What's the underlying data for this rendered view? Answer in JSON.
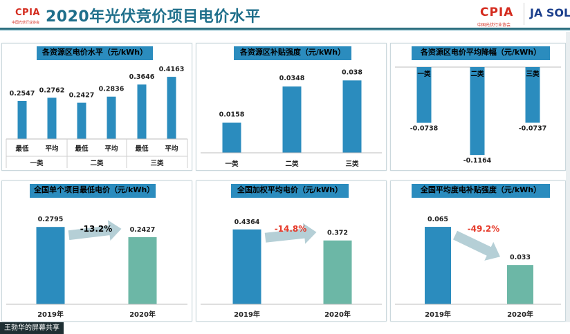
{
  "header": {
    "title": "2020年光伏竞价项目电价水平",
    "left_logo": "CPIA",
    "left_logo_sub": "中国光伏行业协会",
    "right_logo": "CPIA",
    "right_logo_sub": "中国光伏行业协会",
    "partner_logo": "JA SOLA",
    "partner_logo_sub": ""
  },
  "watermark": "王勃华的屏幕共享",
  "colors": {
    "bar_blue": "#2b8cbe",
    "bar_teal": "#6cb7a6",
    "pct_red": "#e63a2a",
    "pct_dark": "#000000",
    "header_blue": "#1f6f8b"
  },
  "chart_data": [
    {
      "id": "c1",
      "type": "bar",
      "title": "各资源区电价水平（元/kWh）",
      "categories": [
        "最低",
        "平均",
        "最低",
        "平均",
        "最低",
        "平均"
      ],
      "groups": [
        "一类",
        "二类",
        "三类"
      ],
      "values": [
        0.2547,
        0.2762,
        0.2427,
        0.2836,
        0.3646,
        0.4163
      ],
      "labels": [
        "0.2547",
        "0.2762",
        "0.2427",
        "0.2836",
        "0.3646",
        "0.4163"
      ],
      "ylim": [
        0,
        0.5
      ],
      "grid": false
    },
    {
      "id": "c2",
      "type": "bar",
      "title": "各资源区补贴强度（元/kWh）",
      "categories": [
        "一类",
        "二类",
        "三类"
      ],
      "values": [
        0.0158,
        0.0348,
        0.038
      ],
      "labels": [
        "0.0158",
        "0.0348",
        "0.038"
      ],
      "ylim": [
        0,
        0.045
      ],
      "grid": false
    },
    {
      "id": "c3",
      "type": "bar",
      "title": "各资源区电价平均降幅（元/kWh）",
      "categories": [
        "一类",
        "二类",
        "三类"
      ],
      "values": [
        -0.0738,
        -0.1164,
        -0.0737
      ],
      "labels": [
        "-0.0738",
        "-0.1164",
        "-0.0737"
      ],
      "ylim": [
        -0.13,
        0
      ],
      "grid": false
    },
    {
      "id": "c4",
      "type": "bar",
      "title": "全国单个项目最低电价（元/kWh）",
      "categories": [
        "2019年",
        "2020年"
      ],
      "values": [
        0.2795,
        0.2427
      ],
      "labels": [
        "0.2795",
        "0.2427"
      ],
      "change": "-13.2%",
      "change_color": "#000000",
      "ylim": [
        0,
        0.31
      ],
      "grid": false
    },
    {
      "id": "c5",
      "type": "bar",
      "title": "全国加权平均电价（元/kWh）",
      "categories": [
        "2019年",
        "2020年"
      ],
      "values": [
        0.4364,
        0.372
      ],
      "labels": [
        "0.4364",
        "0.372"
      ],
      "change": "-14.8%",
      "change_color": "#e63a2a",
      "ylim": [
        0,
        0.5
      ],
      "grid": false
    },
    {
      "id": "c6",
      "type": "bar",
      "title": "全国平均度电补贴强度（元/kWh）",
      "categories": [
        "2019年",
        "2020年"
      ],
      "values": [
        0.065,
        0.033
      ],
      "labels": [
        "0.065",
        "0.033"
      ],
      "change": "-49.2%",
      "change_color": "#e63a2a",
      "ylim": [
        0,
        0.072
      ],
      "grid": false
    }
  ]
}
